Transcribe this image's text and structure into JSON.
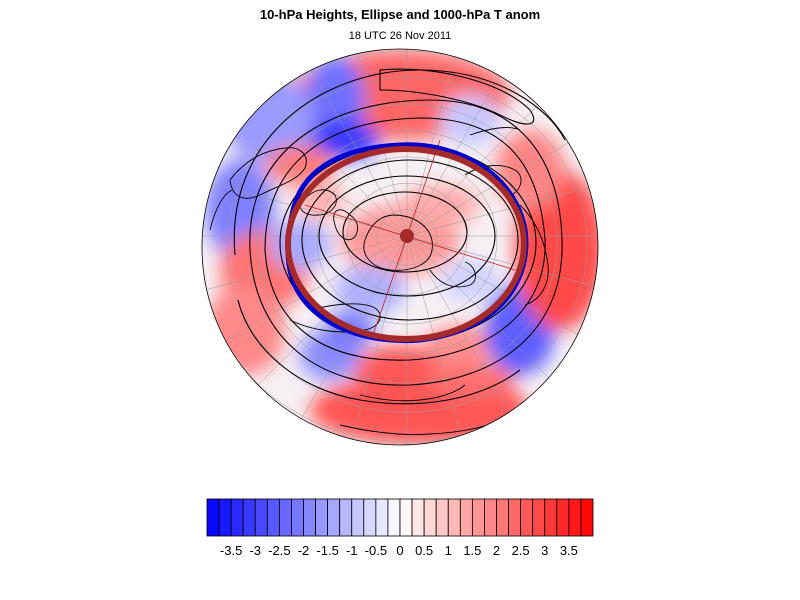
{
  "title": "10-hPa Heights, Ellipse and 1000-hPa T anom",
  "subtitle": "18 UTC 26 Nov 2011",
  "colors": {
    "ellipse": "#a52a2a",
    "vortex_edge": "#0000cc",
    "contour": "#000000",
    "warm": "#ff0000",
    "cold": "#0000ff"
  },
  "colorbar": {
    "labels": [
      "-3.5",
      "-3",
      "-2.5",
      "-2",
      "-1.5",
      "-1",
      "-0.5",
      "0",
      "0.5",
      "1",
      "1.5",
      "2",
      "2.5",
      "3",
      "3.5"
    ],
    "min": -4,
    "max": 4,
    "step": 0.25
  },
  "map": {
    "projection": "orthographic north-polar",
    "field": "1000-hPa T anom"
  }
}
